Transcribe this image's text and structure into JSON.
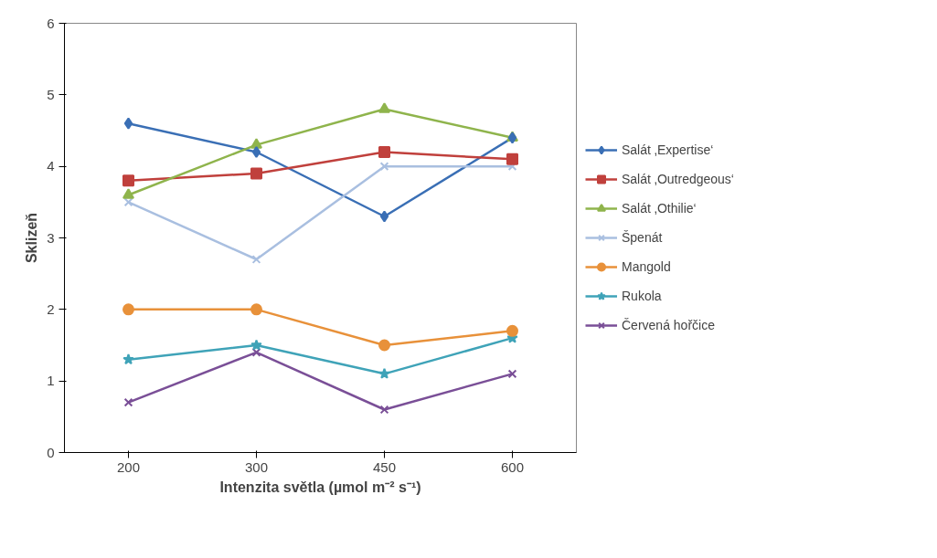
{
  "chart_data": {
    "type": "line",
    "xlabel": "Intenzita světla (µmol m⁻² s⁻¹)",
    "ylabel": "Sklizeň",
    "categories": [
      "200",
      "300",
      "450",
      "600"
    ],
    "ylim": [
      0,
      6
    ],
    "yticks": [
      0,
      1,
      2,
      3,
      4,
      5,
      6
    ],
    "grid": false,
    "legend": "right",
    "line_style": "solid",
    "series": [
      {
        "name": "Salát ‚Expertise‘",
        "color": "#3a6fb5",
        "marker": "diamond",
        "values": [
          4.6,
          4.2,
          3.3,
          4.4
        ]
      },
      {
        "name": "Salát ‚Outredgeous‘",
        "color": "#c0403c",
        "marker": "square",
        "values": [
          3.8,
          3.9,
          4.2,
          4.1
        ]
      },
      {
        "name": "Salát ‚Othilie‘",
        "color": "#8fb44c",
        "marker": "triangle",
        "values": [
          3.6,
          4.3,
          4.8,
          4.4
        ]
      },
      {
        "name": "Špenát",
        "color": "#a9bfe0",
        "marker": "cross",
        "values": [
          3.5,
          2.7,
          4.0,
          4.0
        ]
      },
      {
        "name": "Mangold",
        "color": "#e8913a",
        "marker": "circle",
        "values": [
          2.0,
          2.0,
          1.5,
          1.7
        ]
      },
      {
        "name": "Rukola",
        "color": "#3fa3b8",
        "marker": "star",
        "values": [
          1.3,
          1.5,
          1.1,
          1.6
        ]
      },
      {
        "name": "Červená hořčice",
        "color": "#7a4f97",
        "marker": "cross",
        "values": [
          0.7,
          1.4,
          0.6,
          1.1
        ]
      }
    ]
  }
}
